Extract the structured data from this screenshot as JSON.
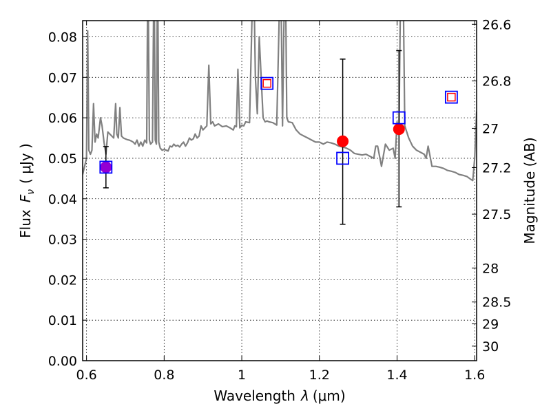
{
  "chart_data": {
    "type": "scatter",
    "xlabel_text": "Wavelength",
    "xlabel_symbol": "λ",
    "xlabel_unit": "(μm)",
    "ylabel_text": "Flux",
    "ylabel_symbol": "F",
    "ylabel_sub": "ν",
    "ylabel_unit": "( μJy )",
    "y2label": "Magnitude (AB)",
    "xlim": [
      0.59,
      1.605
    ],
    "ylim": [
      0.0,
      0.084
    ],
    "grid": true,
    "x_ticks": [
      0.6,
      0.8,
      1.0,
      1.2,
      1.4,
      1.6
    ],
    "x_tick_labels": [
      "0.6",
      "0.8",
      "1",
      "1.2",
      "1.4",
      "1.6"
    ],
    "y_ticks": [
      0.0,
      0.01,
      0.02,
      0.03,
      0.04,
      0.05,
      0.06,
      0.07,
      0.08
    ],
    "y_tick_labels": [
      "0.00",
      "0.01",
      "0.02",
      "0.03",
      "0.04",
      "0.05",
      "0.06",
      "0.07",
      "0.08"
    ],
    "y2_ticks": [
      {
        "flux": 0.0831,
        "label": "26.6"
      },
      {
        "flux": 0.0691,
        "label": "26.8"
      },
      {
        "flux": 0.0574,
        "label": "27"
      },
      {
        "flux": 0.0477,
        "label": "27.2"
      },
      {
        "flux": 0.0362,
        "label": "27.5"
      },
      {
        "flux": 0.0229,
        "label": "28"
      },
      {
        "flux": 0.0145,
        "label": "28.5"
      },
      {
        "flux": 0.0091,
        "label": "29"
      },
      {
        "flux": 0.0036,
        "label": "30"
      }
    ],
    "model_spectrum": {
      "color": "#808080",
      "x": [
        0.59,
        0.595,
        0.6,
        0.603,
        0.606,
        0.61,
        0.614,
        0.618,
        0.622,
        0.626,
        0.63,
        0.636,
        0.64,
        0.645,
        0.65,
        0.655,
        0.66,
        0.665,
        0.67,
        0.675,
        0.678,
        0.682,
        0.686,
        0.69,
        0.695,
        0.7,
        0.705,
        0.71,
        0.715,
        0.72,
        0.725,
        0.73,
        0.735,
        0.74,
        0.745,
        0.75,
        0.755,
        0.758,
        0.762,
        0.765,
        0.77,
        0.774,
        0.777,
        0.78,
        0.783,
        0.786,
        0.79,
        0.795,
        0.8,
        0.805,
        0.81,
        0.815,
        0.82,
        0.825,
        0.83,
        0.835,
        0.84,
        0.845,
        0.85,
        0.855,
        0.86,
        0.865,
        0.87,
        0.875,
        0.88,
        0.885,
        0.89,
        0.895,
        0.9,
        0.905,
        0.91,
        0.915,
        0.92,
        0.925,
        0.93,
        0.94,
        0.95,
        0.96,
        0.97,
        0.978,
        0.982,
        0.986,
        0.99,
        0.995,
        1.0,
        1.005,
        1.01,
        1.02,
        1.03,
        1.035,
        1.04,
        1.045,
        1.05,
        1.055,
        1.06,
        1.065,
        1.07,
        1.08,
        1.09,
        1.1,
        1.105,
        1.108,
        1.112,
        1.116,
        1.12,
        1.13,
        1.14,
        1.15,
        1.16,
        1.17,
        1.18,
        1.19,
        1.2,
        1.21,
        1.22,
        1.23,
        1.24,
        1.25,
        1.26,
        1.27,
        1.28,
        1.29,
        1.3,
        1.31,
        1.32,
        1.33,
        1.34,
        1.345,
        1.35,
        1.36,
        1.37,
        1.38,
        1.39,
        1.395,
        1.4,
        1.405,
        1.41,
        1.415,
        1.42,
        1.43,
        1.44,
        1.45,
        1.46,
        1.47,
        1.475,
        1.48,
        1.49,
        1.5,
        1.51,
        1.52,
        1.53,
        1.54,
        1.55,
        1.56,
        1.57,
        1.58,
        1.59,
        1.595,
        1.6,
        1.605
      ],
      "y": [
        0.046,
        0.048,
        0.05,
        0.0815,
        0.052,
        0.051,
        0.052,
        0.0635,
        0.054,
        0.056,
        0.055,
        0.06,
        0.058,
        0.054,
        0.051,
        0.0565,
        0.056,
        0.0555,
        0.055,
        0.0635,
        0.056,
        0.055,
        0.0625,
        0.0555,
        0.055,
        0.0548,
        0.0546,
        0.0545,
        0.0543,
        0.054,
        0.0535,
        0.0545,
        0.053,
        0.054,
        0.053,
        0.0545,
        0.0538,
        0.1,
        0.0545,
        0.0535,
        0.054,
        0.1,
        0.0545,
        0.0535,
        0.1,
        0.054,
        0.0525,
        0.052,
        0.0522,
        0.052,
        0.0518,
        0.053,
        0.0528,
        0.0535,
        0.053,
        0.0532,
        0.0528,
        0.0535,
        0.054,
        0.053,
        0.0538,
        0.055,
        0.0545,
        0.0548,
        0.056,
        0.055,
        0.0555,
        0.058,
        0.057,
        0.0575,
        0.058,
        0.073,
        0.0585,
        0.059,
        0.058,
        0.0585,
        0.0578,
        0.058,
        0.0575,
        0.057,
        0.058,
        0.0578,
        0.072,
        0.0575,
        0.0582,
        0.058,
        0.059,
        0.0588,
        0.1,
        0.07,
        0.061,
        0.08,
        0.07,
        0.06,
        0.059,
        0.0592,
        0.059,
        0.0588,
        0.0582,
        0.1,
        0.058,
        0.08,
        0.1,
        0.06,
        0.059,
        0.0588,
        0.057,
        0.056,
        0.0555,
        0.055,
        0.0545,
        0.054,
        0.054,
        0.0535,
        0.054,
        0.0538,
        0.0535,
        0.053,
        0.0528,
        0.0525,
        0.052,
        0.0512,
        0.051,
        0.0508,
        0.051,
        0.0505,
        0.05,
        0.053,
        0.053,
        0.048,
        0.0535,
        0.052,
        0.0525,
        0.05,
        0.059,
        0.057,
        0.1,
        0.1,
        0.058,
        0.055,
        0.053,
        0.052,
        0.0515,
        0.051,
        0.05,
        0.053,
        0.048,
        0.048,
        0.0478,
        0.0475,
        0.047,
        0.0468,
        0.0465,
        0.046,
        0.0458,
        0.0455,
        0.0448,
        0.0445,
        0.05,
        0.0615
      ]
    },
    "series": [
      {
        "marker": "circle",
        "color": "#ff0000",
        "points": [
          {
            "x": 1.26,
            "y": 0.0542,
            "yerr_low": 0.0337,
            "yerr_high": 0.0745
          },
          {
            "x": 1.405,
            "y": 0.0572,
            "yerr_low": 0.038,
            "yerr_high": 0.0766
          }
        ]
      },
      {
        "marker": "circle",
        "color": "#9400d3",
        "points": [
          {
            "x": 0.65,
            "y": 0.0478,
            "yerr_low": 0.0427,
            "yerr_high": 0.0529
          }
        ]
      },
      {
        "marker": "open-square",
        "color": "#0000ff",
        "points": [
          {
            "x": 0.65,
            "y": 0.0478
          },
          {
            "x": 1.065,
            "y": 0.0685
          },
          {
            "x": 1.26,
            "y": 0.05
          },
          {
            "x": 1.405,
            "y": 0.06
          },
          {
            "x": 1.54,
            "y": 0.0651
          }
        ]
      },
      {
        "marker": "open-square-small",
        "color": "#ff0000",
        "points": [
          {
            "x": 1.065,
            "y": 0.0685
          },
          {
            "x": 1.54,
            "y": 0.0651
          }
        ]
      }
    ]
  }
}
